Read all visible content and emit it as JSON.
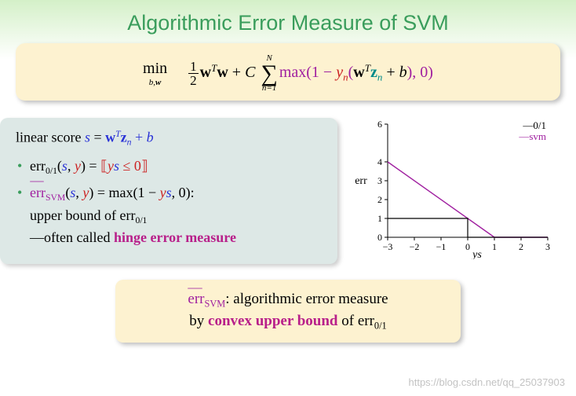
{
  "title": "Algorithmic Error Measure of SVM",
  "formula": {
    "min_label": "min",
    "min_under_b": "b",
    "min_under_w": "w",
    "frac_num": "1",
    "frac_den": "2",
    "w": "w",
    "T": "T",
    "plus": " + ",
    "C": "C",
    "sum_top": "N",
    "sum_bot_lhs": "n",
    "sum_bot_rhs": "=1",
    "max_open": "max",
    "lp": "(",
    "one_minus": "1 − ",
    "yn": "y",
    "n": "n",
    "z": "z",
    "b": "b",
    "rp": ")",
    "comma_zero": ", 0)"
  },
  "left": {
    "line1_pre": "linear score ",
    "s": "s",
    "eq": " = ",
    "w": "w",
    "T": "T",
    "z": "z",
    "n": "n",
    "plus": " + ",
    "b": "b",
    "item1_err": "err",
    "item1_sub": "0/1",
    "item1_args_open": "(",
    "item1_s": "s",
    "item1_comma": ", ",
    "item1_y": "y",
    "item1_args_close": ") = ",
    "item1_br_open": "⟦",
    "item1_ys": "ys",
    "item1_le": " ≤ 0",
    "item1_br_close": "⟧",
    "item2_err": "err",
    "item2_sub": "SVM",
    "item2_args_open": "(",
    "item2_s": "s",
    "item2_comma": ", ",
    "item2_y": "y",
    "item2_close": ") = max(1 − ",
    "item2_ys": "ys",
    "item2_tail": ", 0):",
    "item2_line2a": "upper bound of ",
    "item2_line2b": "err",
    "item2_line2c": "0/1",
    "item2_line3a": "—often called ",
    "item2_line3b": "hinge error measure"
  },
  "chart": {
    "type": "line",
    "xlim": [
      -3,
      3
    ],
    "ylim": [
      0,
      6
    ],
    "xticks": [
      -3,
      -2,
      -1,
      0,
      1,
      2,
      3
    ],
    "yticks": [
      0,
      1,
      2,
      3,
      4,
      6
    ],
    "xlabel": "ys",
    "ylabel": "err",
    "legend": [
      {
        "label": "0/1",
        "color": "#000000",
        "prefix": "—"
      },
      {
        "label": "svm",
        "color": "#a020a0",
        "prefix": "—"
      }
    ],
    "series": [
      {
        "name": "svm",
        "color": "#a020a0",
        "width": 1.4,
        "points": [
          [
            -3,
            4
          ],
          [
            1,
            0
          ],
          [
            3,
            0
          ]
        ]
      },
      {
        "name": "0/1",
        "color": "#000000",
        "width": 1.2,
        "points": [
          [
            -3,
            1
          ],
          [
            0,
            1
          ],
          [
            0,
            0
          ],
          [
            3,
            0
          ]
        ]
      }
    ],
    "axis_color": "#000000",
    "background_color": "#ffffff",
    "font_size": 14
  },
  "bottom": {
    "err": "err",
    "sub": "SVM",
    "line1_rest": ": algorithmic error measure",
    "line2_a": "by ",
    "line2_b": "convex upper bound",
    "line2_c": " of ",
    "line2_err": "err",
    "line2_sub": "0/1"
  },
  "watermark": "https://blog.csdn.net/qq_25037903"
}
